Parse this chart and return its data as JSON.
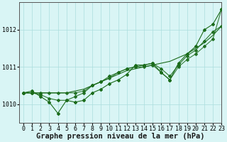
{
  "x": [
    0,
    1,
    2,
    3,
    4,
    5,
    6,
    7,
    8,
    9,
    10,
    11,
    12,
    13,
    14,
    15,
    16,
    17,
    18,
    19,
    20,
    21,
    22,
    23
  ],
  "y_line1": [
    1010.3,
    1010.3,
    1010.3,
    1010.3,
    1010.3,
    1010.3,
    1010.35,
    1010.4,
    1010.5,
    1010.6,
    1010.7,
    1010.8,
    1010.9,
    1010.95,
    1011.0,
    1011.05,
    1011.1,
    1011.15,
    1011.25,
    1011.35,
    1011.5,
    1011.65,
    1011.85,
    1012.1
  ],
  "y_line2": [
    1010.3,
    1010.35,
    1010.2,
    1010.05,
    1009.75,
    1010.1,
    1010.05,
    1010.1,
    1010.3,
    1010.4,
    1010.55,
    1010.65,
    1010.8,
    1011.05,
    1011.05,
    1011.1,
    1010.85,
    1010.65,
    1011.1,
    1011.35,
    1011.55,
    1012.0,
    1012.15,
    1012.55
  ],
  "y_line3": [
    1010.3,
    1010.3,
    1010.25,
    1010.15,
    1010.1,
    1010.1,
    1010.2,
    1010.3,
    1010.5,
    1010.6,
    1010.75,
    1010.85,
    1010.95,
    1011.0,
    1011.05,
    1011.1,
    1010.95,
    1010.75,
    1011.05,
    1011.3,
    1011.45,
    1011.7,
    1011.95,
    1012.1
  ],
  "y_line4": [
    1010.3,
    1010.3,
    1010.3,
    1010.3,
    1010.3,
    1010.3,
    1010.3,
    1010.35,
    1010.5,
    1010.6,
    1010.7,
    1010.85,
    1010.95,
    1011.0,
    1011.0,
    1011.05,
    1010.85,
    1010.65,
    1011.0,
    1011.2,
    1011.35,
    1011.55,
    1011.75,
    1012.55
  ],
  "line_color": "#1a6b1a",
  "bg_color": "#d9f5f5",
  "grid_color": "#aadddd",
  "xlabel": "Graphe pression niveau de la mer (hPa)",
  "xlim": [
    -0.5,
    23
  ],
  "ylim": [
    1009.5,
    1012.75
  ],
  "yticks": [
    1010,
    1011,
    1012
  ],
  "xticks": [
    0,
    1,
    2,
    3,
    4,
    5,
    6,
    7,
    8,
    9,
    10,
    11,
    12,
    13,
    14,
    15,
    16,
    17,
    18,
    19,
    20,
    21,
    22,
    23
  ],
  "tick_fontsize": 6.0,
  "xlabel_fontsize": 7.5,
  "marker": "D",
  "marker_size": 2.0,
  "linewidth": 0.8
}
